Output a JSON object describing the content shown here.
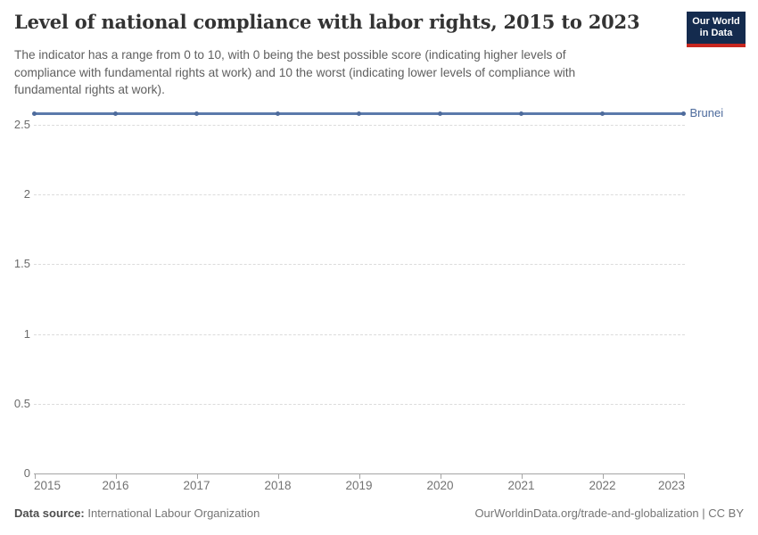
{
  "header": {
    "title": "Level of national compliance with labor rights, 2015 to 2023",
    "subtitle_lines": [
      "The indicator has a range from 0 to 10, with 0 being the best possible score (indicating higher levels of",
      "compliance with fundamental rights at work) and 10 the worst (indicating lower levels of compliance with",
      "fundamental rights at work)."
    ],
    "logo": {
      "line1": "Our World",
      "line2": "in Data",
      "bg_color": "#142b4e",
      "bar_color": "#c7261f"
    }
  },
  "chart_data": {
    "type": "line",
    "title": "Level of national compliance with labor rights, 2015 to 2023",
    "x": [
      2015,
      2016,
      2017,
      2018,
      2019,
      2020,
      2021,
      2022,
      2023
    ],
    "series": [
      {
        "name": "Brunei",
        "values": [
          2.58,
          2.58,
          2.58,
          2.58,
          2.58,
          2.58,
          2.58,
          2.58,
          2.58
        ],
        "color": "#5b7aab",
        "marker_color": "#4e6b9c",
        "label_color": "#4c6a9c"
      }
    ],
    "xlabel": "",
    "ylabel": "",
    "ylim": [
      0,
      2.6
    ],
    "y_ticks": [
      {
        "v": 0,
        "label": "0"
      },
      {
        "v": 0.5,
        "label": "0.5"
      },
      {
        "v": 1,
        "label": "1"
      },
      {
        "v": 1.5,
        "label": "1.5"
      },
      {
        "v": 2,
        "label": "2"
      },
      {
        "v": 2.5,
        "label": "2.5"
      }
    ],
    "x_ticks": [
      "2015",
      "2016",
      "2017",
      "2018",
      "2019",
      "2020",
      "2021",
      "2022",
      "2023"
    ],
    "grid": "horizontal-dashed",
    "legend_position": "line-end-label"
  },
  "footer": {
    "datasource_label": "Data source:",
    "datasource_value": "International Labour Organization",
    "link": "OurWorldinData.org/trade-and-globalization | CC BY"
  }
}
